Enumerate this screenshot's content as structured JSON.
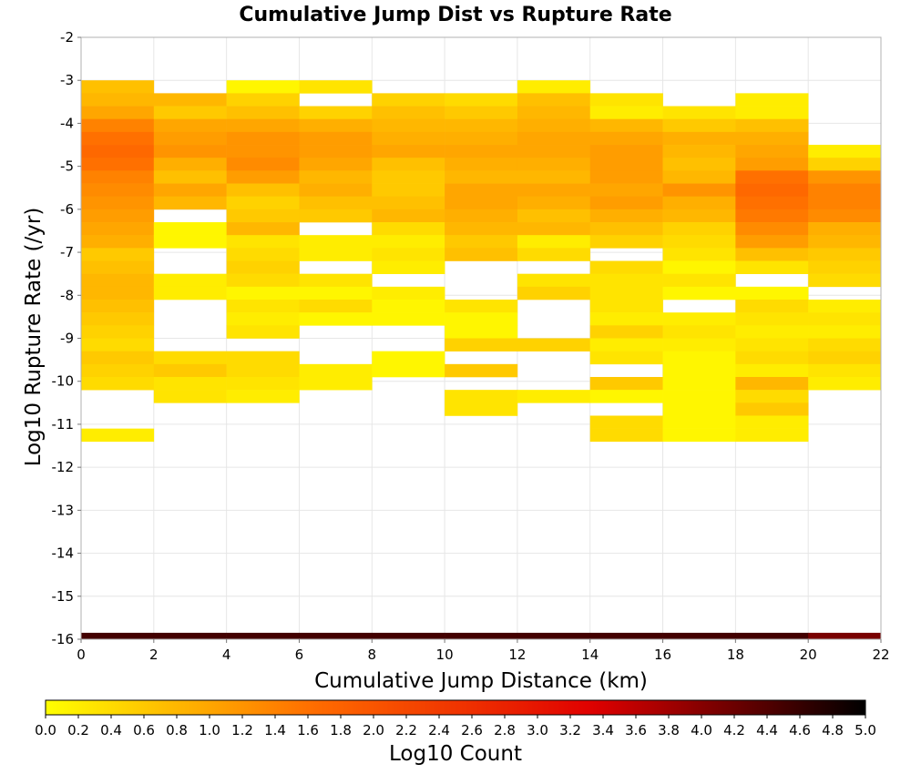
{
  "chart_data": {
    "type": "heatmap",
    "title": "Cumulative Jump Dist vs Rupture Rate",
    "xlabel": "Cumulative Jump Distance (km)",
    "ylabel": "Log10 Rupture Rate (/yr)",
    "colorbar_label": "Log10 Count",
    "xlim": [
      0,
      22
    ],
    "ylim": [
      -16,
      -2
    ],
    "x_ticks": [
      "0",
      "2",
      "4",
      "6",
      "8",
      "10",
      "12",
      "14",
      "16",
      "18",
      "20",
      "22"
    ],
    "y_ticks": [
      "-2",
      "-3",
      "-4",
      "-5",
      "-6",
      "-7",
      "-8",
      "-9",
      "-10",
      "-11",
      "-12",
      "-13",
      "-14",
      "-15",
      "-16"
    ],
    "colorbar_range": [
      0,
      5
    ],
    "colorbar_ticks": [
      "0.0",
      "0.2",
      "0.4",
      "0.6",
      "0.8",
      "1.0",
      "1.2",
      "1.4",
      "1.6",
      "1.8",
      "2.0",
      "2.2",
      "2.4",
      "2.6",
      "2.8",
      "3.0",
      "3.2",
      "3.4",
      "3.6",
      "3.8",
      "4.0",
      "4.2",
      "4.4",
      "4.6",
      "4.8",
      "5.0"
    ],
    "colormap": [
      "#ffff00",
      "#ff6a00",
      "#e00000",
      "#000000"
    ],
    "grid": true,
    "legend": "colorbar-bottom",
    "x_bin_width": 2,
    "y_bin_height": 0.3,
    "columns": [
      {
        "x": 0,
        "cells": [
          [
            -3.3,
            0.7
          ],
          [
            -3.6,
            0.8
          ],
          [
            -3.9,
            1.0
          ],
          [
            -4.2,
            1.4
          ],
          [
            -4.5,
            1.6
          ],
          [
            -4.8,
            1.7
          ],
          [
            -5.1,
            1.6
          ],
          [
            -5.4,
            1.4
          ],
          [
            -5.7,
            1.3
          ],
          [
            -6.0,
            1.2
          ],
          [
            -6.3,
            1.1
          ],
          [
            -6.6,
            1.0
          ],
          [
            -6.9,
            0.9
          ],
          [
            -7.2,
            0.6
          ],
          [
            -7.5,
            0.7
          ],
          [
            -7.8,
            0.8
          ],
          [
            -8.1,
            0.8
          ],
          [
            -8.4,
            0.7
          ],
          [
            -8.7,
            0.6
          ],
          [
            -9.0,
            0.5
          ],
          [
            -9.3,
            0.4
          ],
          [
            -9.6,
            0.6
          ],
          [
            -9.9,
            0.5
          ],
          [
            -10.2,
            0.4
          ],
          [
            -11.4,
            0.2
          ]
        ]
      },
      {
        "x": 2,
        "cells": [
          [
            -3.6,
            0.8
          ],
          [
            -3.9,
            0.6
          ],
          [
            -4.2,
            1.0
          ],
          [
            -4.5,
            1.1
          ],
          [
            -4.8,
            1.2
          ],
          [
            -5.1,
            0.9
          ],
          [
            -5.4,
            0.7
          ],
          [
            -5.7,
            1.0
          ],
          [
            -6.0,
            0.8
          ],
          [
            -6.6,
            0.1
          ],
          [
            -6.9,
            0.1
          ],
          [
            -7.8,
            0.2
          ],
          [
            -8.1,
            0.2
          ],
          [
            -9.6,
            0.4
          ],
          [
            -9.9,
            0.6
          ],
          [
            -10.2,
            0.3
          ],
          [
            -10.5,
            0.3
          ]
        ]
      },
      {
        "x": 4,
        "cells": [
          [
            -3.3,
            0.1
          ],
          [
            -3.6,
            0.5
          ],
          [
            -3.9,
            0.7
          ],
          [
            -4.2,
            1.0
          ],
          [
            -4.5,
            1.2
          ],
          [
            -4.8,
            1.2
          ],
          [
            -5.1,
            1.3
          ],
          [
            -5.4,
            1.1
          ],
          [
            -5.7,
            0.7
          ],
          [
            -6.0,
            0.5
          ],
          [
            -6.3,
            0.6
          ],
          [
            -6.6,
            0.8
          ],
          [
            -6.9,
            0.3
          ],
          [
            -7.2,
            0.4
          ],
          [
            -7.5,
            0.5
          ],
          [
            -7.8,
            0.4
          ],
          [
            -8.1,
            0.1
          ],
          [
            -8.4,
            0.3
          ],
          [
            -8.7,
            0.2
          ],
          [
            -9.0,
            0.3
          ],
          [
            -9.6,
            0.4
          ],
          [
            -9.9,
            0.4
          ],
          [
            -10.2,
            0.3
          ],
          [
            -10.5,
            0.2
          ]
        ]
      },
      {
        "x": 6,
        "cells": [
          [
            -3.3,
            0.3
          ],
          [
            -3.9,
            0.5
          ],
          [
            -4.2,
            0.9
          ],
          [
            -4.5,
            1.1
          ],
          [
            -4.8,
            1.1
          ],
          [
            -5.1,
            1.0
          ],
          [
            -5.4,
            0.8
          ],
          [
            -5.7,
            0.9
          ],
          [
            -6.0,
            0.7
          ],
          [
            -6.3,
            0.6
          ],
          [
            -6.9,
            0.2
          ],
          [
            -7.2,
            0.2
          ],
          [
            -7.8,
            0.3
          ],
          [
            -8.1,
            0.1
          ],
          [
            -8.4,
            0.4
          ],
          [
            -8.7,
            0.1
          ],
          [
            -9.9,
            0.2
          ],
          [
            -10.2,
            0.2
          ]
        ]
      },
      {
        "x": 8,
        "cells": [
          [
            -3.6,
            0.5
          ],
          [
            -3.9,
            0.7
          ],
          [
            -4.2,
            0.8
          ],
          [
            -4.5,
            0.9
          ],
          [
            -4.8,
            1.0
          ],
          [
            -5.1,
            0.7
          ],
          [
            -5.4,
            0.6
          ],
          [
            -5.7,
            0.6
          ],
          [
            -6.0,
            0.7
          ],
          [
            -6.3,
            0.8
          ],
          [
            -6.6,
            0.4
          ],
          [
            -6.9,
            0.2
          ],
          [
            -7.2,
            0.3
          ],
          [
            -7.5,
            0.2
          ],
          [
            -8.1,
            0.2
          ],
          [
            -8.4,
            0.1
          ],
          [
            -8.7,
            0.1
          ],
          [
            -9.6,
            0.1
          ],
          [
            -9.9,
            0.1
          ]
        ]
      },
      {
        "x": 10,
        "cells": [
          [
            -3.6,
            0.4
          ],
          [
            -3.9,
            0.6
          ],
          [
            -4.2,
            0.8
          ],
          [
            -4.5,
            0.9
          ],
          [
            -4.8,
            1.0
          ],
          [
            -5.1,
            0.9
          ],
          [
            -5.4,
            0.8
          ],
          [
            -5.7,
            1.0
          ],
          [
            -6.0,
            1.0
          ],
          [
            -6.3,
            0.9
          ],
          [
            -6.6,
            0.8
          ],
          [
            -6.9,
            0.6
          ],
          [
            -7.2,
            0.7
          ],
          [
            -8.4,
            0.3
          ],
          [
            -8.7,
            0.1
          ],
          [
            -9.0,
            0.1
          ],
          [
            -9.3,
            0.5
          ],
          [
            -9.9,
            0.6
          ],
          [
            -10.5,
            0.3
          ],
          [
            -10.8,
            0.3
          ]
        ]
      },
      {
        "x": 12,
        "cells": [
          [
            -3.3,
            0.2
          ],
          [
            -3.6,
            0.7
          ],
          [
            -3.9,
            0.8
          ],
          [
            -4.2,
            0.9
          ],
          [
            -4.5,
            1.0
          ],
          [
            -4.8,
            1.0
          ],
          [
            -5.1,
            0.9
          ],
          [
            -5.4,
            0.8
          ],
          [
            -5.7,
            1.0
          ],
          [
            -6.0,
            0.9
          ],
          [
            -6.3,
            0.7
          ],
          [
            -6.6,
            0.8
          ],
          [
            -6.9,
            0.2
          ],
          [
            -7.2,
            0.4
          ],
          [
            -7.8,
            0.3
          ],
          [
            -8.1,
            0.5
          ],
          [
            -9.3,
            0.5
          ],
          [
            -10.5,
            0.2
          ]
        ]
      },
      {
        "x": 14,
        "cells": [
          [
            -3.6,
            0.3
          ],
          [
            -3.9,
            0.2
          ],
          [
            -4.2,
            0.8
          ],
          [
            -4.5,
            1.0
          ],
          [
            -4.8,
            1.1
          ],
          [
            -5.1,
            1.1
          ],
          [
            -5.4,
            1.1
          ],
          [
            -5.7,
            1.0
          ],
          [
            -6.0,
            1.1
          ],
          [
            -6.3,
            0.9
          ],
          [
            -6.6,
            0.7
          ],
          [
            -6.9,
            0.5
          ],
          [
            -7.5,
            0.4
          ],
          [
            -7.8,
            0.3
          ],
          [
            -8.1,
            0.3
          ],
          [
            -8.4,
            0.3
          ],
          [
            -8.7,
            0.2
          ],
          [
            -9.0,
            0.5
          ],
          [
            -9.3,
            0.2
          ],
          [
            -9.6,
            0.3
          ],
          [
            -10.2,
            0.6
          ],
          [
            -10.5,
            0.1
          ],
          [
            -11.1,
            0.4
          ],
          [
            -11.4,
            0.4
          ]
        ]
      },
      {
        "x": 16,
        "cells": [
          [
            -3.9,
            0.3
          ],
          [
            -4.2,
            0.6
          ],
          [
            -4.5,
            0.9
          ],
          [
            -4.8,
            0.8
          ],
          [
            -5.1,
            0.7
          ],
          [
            -5.4,
            0.8
          ],
          [
            -5.7,
            1.2
          ],
          [
            -6.0,
            0.9
          ],
          [
            -6.3,
            0.8
          ],
          [
            -6.6,
            0.5
          ],
          [
            -6.9,
            0.4
          ],
          [
            -7.2,
            0.3
          ],
          [
            -7.5,
            0.1
          ],
          [
            -7.8,
            0.3
          ],
          [
            -8.1,
            0.1
          ],
          [
            -8.7,
            0.2
          ],
          [
            -9.0,
            0.3
          ],
          [
            -9.3,
            0.2
          ],
          [
            -9.6,
            0.1
          ],
          [
            -9.9,
            0.1
          ],
          [
            -10.2,
            0.1
          ],
          [
            -10.5,
            0.1
          ],
          [
            -10.8,
            0.1
          ],
          [
            -11.1,
            0.1
          ],
          [
            -11.4,
            0.1
          ]
        ]
      },
      {
        "x": 18,
        "cells": [
          [
            -3.6,
            0.2
          ],
          [
            -3.9,
            0.2
          ],
          [
            -4.2,
            0.7
          ],
          [
            -4.5,
            0.9
          ],
          [
            -4.8,
            1.0
          ],
          [
            -5.1,
            1.1
          ],
          [
            -5.4,
            1.6
          ],
          [
            -5.7,
            1.7
          ],
          [
            -6.0,
            1.6
          ],
          [
            -6.3,
            1.5
          ],
          [
            -6.6,
            1.3
          ],
          [
            -6.9,
            1.1
          ],
          [
            -7.2,
            0.7
          ],
          [
            -7.5,
            0.3
          ],
          [
            -8.1,
            0.1
          ],
          [
            -8.4,
            0.4
          ],
          [
            -8.7,
            0.3
          ],
          [
            -9.0,
            0.2
          ],
          [
            -9.3,
            0.3
          ],
          [
            -9.6,
            0.4
          ],
          [
            -9.9,
            0.2
          ],
          [
            -10.2,
            0.8
          ],
          [
            -10.5,
            0.4
          ],
          [
            -10.8,
            0.6
          ],
          [
            -11.1,
            0.2
          ],
          [
            -11.4,
            0.2
          ]
        ]
      },
      {
        "x": 20,
        "cells": [
          [
            -4.8,
            0.2
          ],
          [
            -5.1,
            0.5
          ],
          [
            -5.4,
            1.2
          ],
          [
            -5.7,
            1.4
          ],
          [
            -6.0,
            1.4
          ],
          [
            -6.3,
            1.3
          ],
          [
            -6.6,
            0.9
          ],
          [
            -6.9,
            0.8
          ],
          [
            -7.2,
            0.6
          ],
          [
            -7.5,
            0.5
          ],
          [
            -7.8,
            0.4
          ],
          [
            -8.4,
            0.2
          ],
          [
            -8.7,
            0.3
          ],
          [
            -9.0,
            0.2
          ],
          [
            -9.3,
            0.4
          ],
          [
            -9.6,
            0.5
          ],
          [
            -9.9,
            0.3
          ],
          [
            -10.2,
            0.2
          ]
        ]
      }
    ],
    "bottom_row": {
      "y": -16.0,
      "values": [
        4.5,
        4.5,
        4.5,
        4.5,
        4.5,
        4.5,
        4.5,
        4.5,
        4.5,
        4.5,
        4.1
      ]
    }
  }
}
